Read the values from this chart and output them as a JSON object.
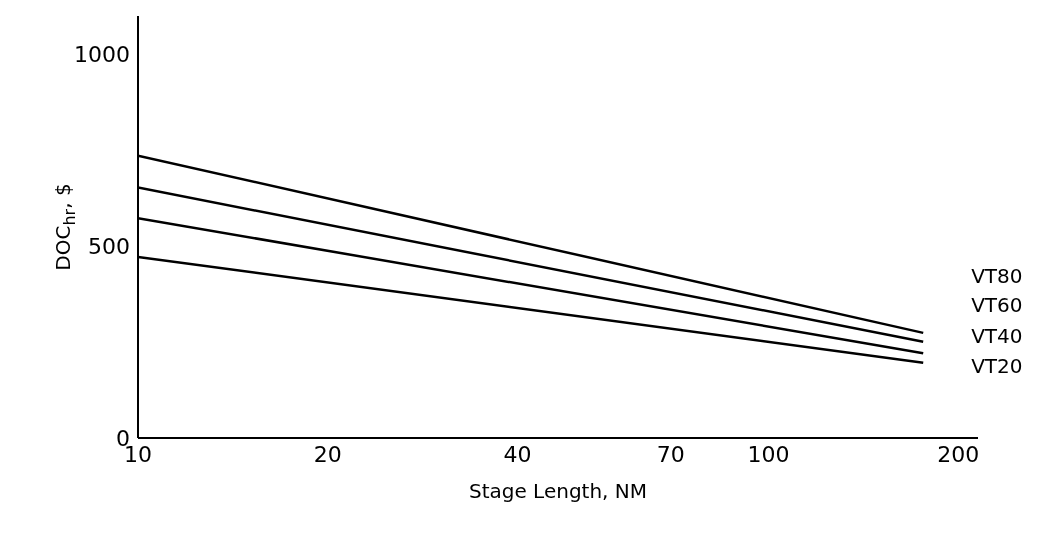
{
  "chart_data": {
    "type": "line",
    "xlabel": "Stage Length, NM",
    "ylabel": "DOC$_{hr}$, $",
    "log": "x",
    "x": [
      10,
      176
    ],
    "series": [
      {
        "name": "VT80",
        "color": "#000000",
        "values": [
          736,
          274
        ]
      },
      {
        "name": "VT60",
        "color": "#000000",
        "values": [
          653,
          251
        ]
      },
      {
        "name": "VT40",
        "color": "#000000",
        "values": [
          573,
          221
        ]
      },
      {
        "name": "VT20",
        "color": "#000000",
        "values": [
          472,
          196
        ]
      }
    ],
    "xlim": [
      10,
      215
    ],
    "xticks": [
      10,
      20,
      40,
      70,
      100,
      200
    ],
    "ylim": [
      0,
      1100
    ],
    "yticks": [
      0,
      500,
      1000
    ],
    "grid": false,
    "legend": false,
    "marker": "none",
    "line_style": "solid"
  }
}
